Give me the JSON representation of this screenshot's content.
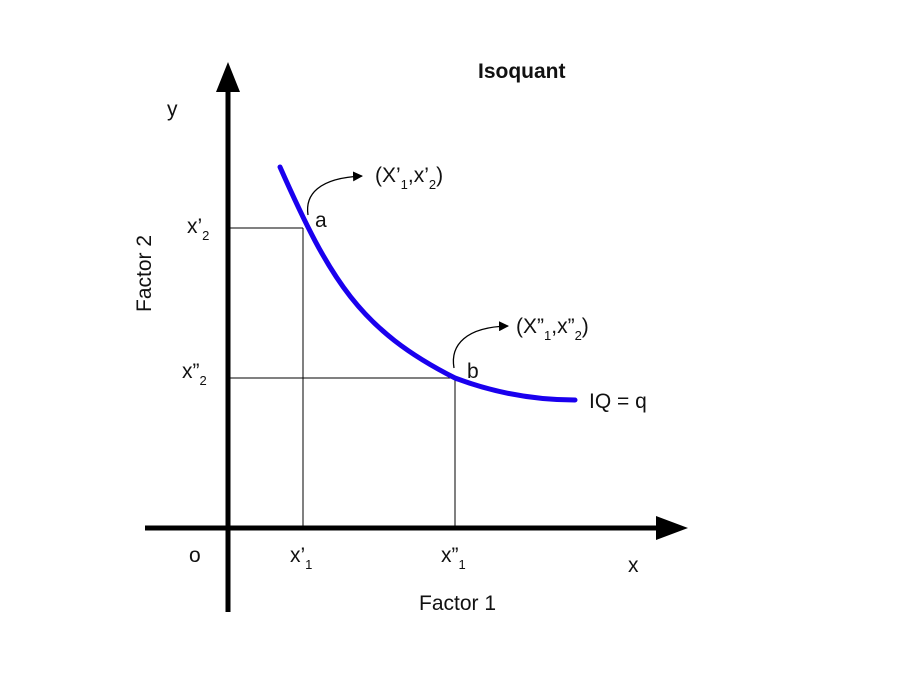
{
  "title": "Isoquant",
  "axes": {
    "y_letter": "y",
    "x_letter": "x",
    "origin": "o",
    "x_name": "Factor 1",
    "y_name": "Factor 2"
  },
  "ticks": {
    "x1_prime": {
      "base": "x’",
      "sub": "1"
    },
    "x1_dprime": {
      "base": "x”",
      "sub": "1"
    },
    "x2_prime": {
      "base": "x’",
      "sub": "2"
    },
    "x2_dprime": {
      "base": "x”",
      "sub": "2"
    }
  },
  "points": {
    "a": {
      "label": "a",
      "coord": {
        "open": "(X’",
        "s1": "1",
        "mid": ",x’",
        "s2": "2",
        "close": ")"
      }
    },
    "b": {
      "label": "b",
      "coord": {
        "open": "(X”",
        "s1": "1",
        "mid": ",x”",
        "s2": "2",
        "close": ")"
      }
    }
  },
  "curve_label": "IQ = q",
  "colors": {
    "curve": "#1a00ee",
    "axes": "#000000",
    "guides": "#000000"
  }
}
